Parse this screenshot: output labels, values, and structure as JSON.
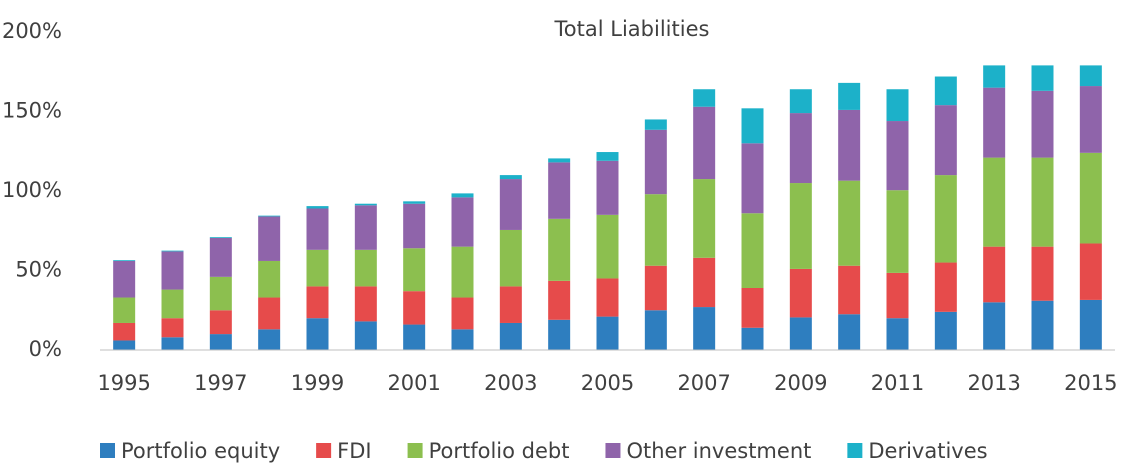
{
  "chart_data": {
    "type": "stacked_bar",
    "title": "Total Liabilities",
    "categories": [
      "1995",
      null,
      "1997",
      null,
      "1999",
      null,
      "2001",
      null,
      "2003",
      null,
      "2005",
      null,
      "2007",
      null,
      "2009",
      null,
      "2011",
      null,
      "2013",
      null,
      "2015"
    ],
    "series": [
      {
        "name": "Portfolio equity",
        "color": "#2e7ebf",
        "values": [
          6,
          8,
          10,
          13,
          20,
          18,
          16,
          13,
          17,
          19,
          21,
          25,
          27,
          14,
          20.5,
          22.5,
          20,
          24,
          30,
          31,
          31.5
        ]
      },
      {
        "name": "FDI",
        "color": "#e64b4b",
        "values": [
          11,
          12,
          15,
          20,
          20,
          22,
          21,
          20,
          23,
          24.5,
          24,
          28,
          31,
          25,
          30.5,
          30.5,
          28.5,
          31,
          35,
          34,
          35.5
        ]
      },
      {
        "name": "Portfolio debt",
        "color": "#8cbf4f",
        "values": [
          16,
          18,
          21,
          23,
          23,
          23,
          27,
          32,
          35.5,
          39,
          40,
          45,
          49.5,
          47,
          54,
          53.5,
          52,
          55,
          56,
          56,
          57
        ]
      },
      {
        "name": "Other investment",
        "color": "#8f64aa",
        "values": [
          23,
          24,
          24.5,
          28,
          26,
          28,
          28,
          31,
          32,
          35.5,
          34,
          40.5,
          45.5,
          44,
          44,
          44.5,
          43.5,
          44,
          44,
          42,
          42
        ]
      },
      {
        "name": "Derivatives",
        "color": "#1cb1c9",
        "values": [
          0.5,
          0.5,
          0.5,
          0.5,
          1.5,
          1,
          1.5,
          2.5,
          2.5,
          2.5,
          5.5,
          6.5,
          11,
          22,
          15,
          17,
          20,
          18,
          14,
          16,
          13
        ]
      }
    ],
    "ylim": [
      0,
      200
    ],
    "yticks": [
      {
        "value": 0,
        "label": "0%"
      },
      {
        "value": 50,
        "label": "50%"
      },
      {
        "value": 100,
        "label": "100%"
      },
      {
        "value": 150,
        "label": "150%"
      },
      {
        "value": 200,
        "label": "200%"
      }
    ],
    "grid": false,
    "legend": "bottom"
  }
}
